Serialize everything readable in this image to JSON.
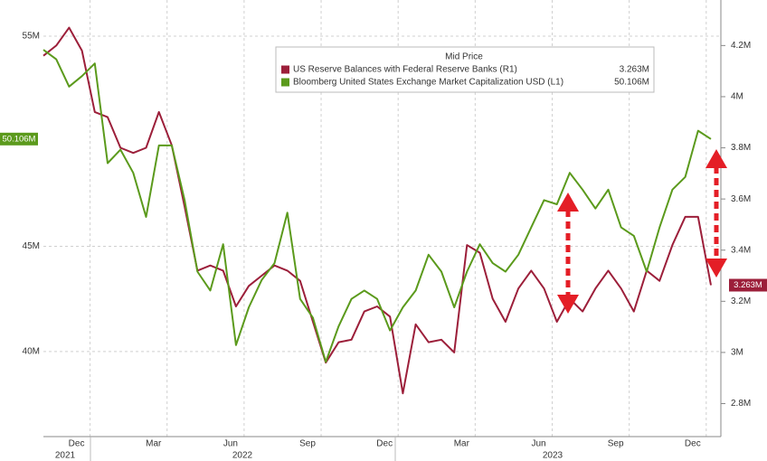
{
  "chart_data": {
    "type": "line",
    "legend_title": "Mid Price",
    "categories": [
      null,
      null,
      null,
      "Dec",
      null,
      null,
      null,
      null,
      null,
      "Mar",
      null,
      null,
      null,
      null,
      null,
      "Jun",
      null,
      null,
      null,
      null,
      null,
      "Sep",
      null,
      null,
      null,
      null,
      null,
      "Dec",
      null,
      null,
      null,
      null,
      null,
      "Mar",
      null,
      null,
      null,
      null,
      null,
      "Jun",
      null,
      null,
      null,
      null,
      null,
      "Sep",
      null,
      null,
      null,
      null,
      null,
      "Dec",
      null
    ],
    "x_groups": [
      "2021",
      "2022",
      "2023"
    ],
    "series": [
      {
        "name": "US Reserve Balances with Federal Reserve Banks (R1)",
        "color": "#9c1f3a",
        "axis": "y2",
        "last": {
          "value": 3.263,
          "label": "3.263M"
        },
        "values": [
          4.16,
          4.2,
          4.27,
          4.18,
          3.94,
          3.92,
          3.8,
          3.78,
          3.8,
          3.94,
          3.81,
          3.57,
          3.32,
          3.34,
          3.32,
          3.18,
          3.26,
          3.3,
          3.34,
          3.32,
          3.28,
          3.12,
          2.96,
          3.04,
          3.05,
          3.16,
          3.18,
          3.14,
          2.84,
          3.11,
          3.04,
          3.05,
          3.0,
          3.42,
          3.39,
          3.21,
          3.12,
          3.25,
          3.32,
          3.25,
          3.12,
          3.21,
          3.16,
          3.25,
          3.32,
          3.25,
          3.16,
          3.32,
          3.28,
          3.42,
          3.53,
          3.53,
          3.263
        ]
      },
      {
        "name": "Bloomberg United States Exchange Market Capitalization USD (L1)",
        "color": "#5b9a1c",
        "axis": "y",
        "last": {
          "value": 50.106,
          "label": "50.106M"
        },
        "values": [
          54.35,
          53.9,
          52.6,
          53.1,
          53.7,
          48.96,
          49.6,
          48.5,
          46.4,
          49.8,
          49.8,
          47.2,
          43.8,
          42.9,
          45.1,
          40.3,
          42.1,
          43.4,
          44.2,
          46.6,
          42.5,
          41.6,
          39.5,
          41.2,
          42.5,
          42.9,
          42.5,
          41.0,
          42.1,
          42.9,
          44.6,
          43.8,
          42.1,
          43.8,
          45.1,
          44.2,
          43.8,
          44.6,
          45.9,
          47.2,
          47.0,
          48.5,
          47.7,
          46.8,
          47.7,
          45.9,
          45.5,
          43.8,
          45.9,
          47.7,
          48.3,
          50.5,
          50.106
        ]
      }
    ],
    "ylim": [
      35.95,
      56.72
    ],
    "yticks": [
      {
        "value": 40,
        "label": "40M"
      },
      {
        "value": 45,
        "label": "45M"
      },
      {
        "value": 55,
        "label": "55M"
      }
    ],
    "y2lim": [
      2.671,
      4.378
    ],
    "y2ticks": [
      {
        "value": 2.8,
        "label": "2.8M"
      },
      {
        "value": 3,
        "label": "3M"
      },
      {
        "value": 3.2,
        "label": "3.2M"
      },
      {
        "value": 3.4,
        "label": "3.4M"
      },
      {
        "value": 3.6,
        "label": "3.6M"
      },
      {
        "value": 3.8,
        "label": "3.8M"
      },
      {
        "value": 4,
        "label": "4M"
      },
      {
        "value": 4.2,
        "label": "4.2M"
      }
    ],
    "grid": true
  }
}
